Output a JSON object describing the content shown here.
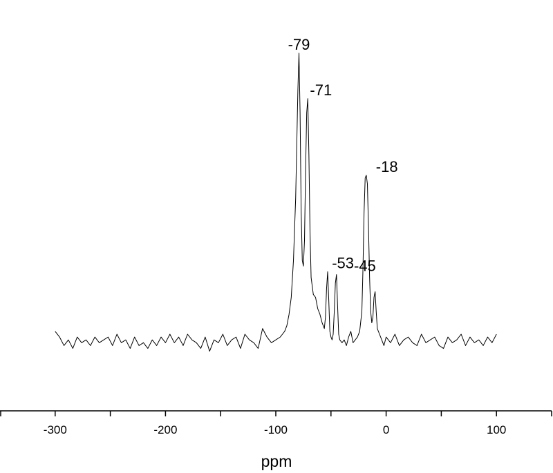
{
  "chart_data": {
    "type": "line",
    "x_label": "ppm",
    "xlim": [
      -350,
      150
    ],
    "xticks": [
      -300,
      -200,
      -100,
      0,
      100
    ],
    "xminorticks": [
      -350,
      -250,
      -150,
      -50,
      50,
      150
    ],
    "ylim": [
      -25,
      110
    ],
    "color": "#000000",
    "x": [
      -300,
      -296,
      -292,
      -288,
      -284,
      -280,
      -276,
      -272,
      -268,
      -264,
      -260,
      -256,
      -252,
      -248,
      -244,
      -240,
      -236,
      -232,
      -228,
      -224,
      -220,
      -216,
      -212,
      -208,
      -204,
      -200,
      -196,
      -192,
      -188,
      -184,
      -180,
      -176,
      -172,
      -168,
      -164,
      -160,
      -156,
      -152,
      -148,
      -144,
      -140,
      -136,
      -132,
      -128,
      -124,
      -120,
      -116,
      -112,
      -108,
      -104,
      -100,
      -96,
      -94,
      -92,
      -90,
      -88,
      -86,
      -84,
      -82,
      -80,
      -79,
      -78,
      -77,
      -76,
      -75,
      -74,
      -73,
      -72,
      -71,
      -70,
      -69,
      -68,
      -66,
      -64,
      -62,
      -60,
      -58,
      -56,
      -55,
      -54,
      -53,
      -52,
      -51,
      -50,
      -49,
      -48,
      -47,
      -46,
      -45,
      -44,
      -43,
      -42,
      -40,
      -38,
      -36,
      -34,
      -32,
      -30,
      -28,
      -26,
      -24,
      -22,
      -21,
      -20,
      -19,
      -18,
      -17,
      -16,
      -15,
      -14,
      -13,
      -12,
      -11,
      -10,
      -9,
      -8,
      -6,
      -4,
      -2,
      0,
      4,
      8,
      12,
      16,
      20,
      24,
      28,
      32,
      36,
      40,
      44,
      48,
      52,
      56,
      60,
      64,
      68,
      72,
      76,
      80,
      84,
      88,
      92,
      96,
      100
    ],
    "values": [
      3,
      1,
      -2,
      0,
      -3,
      1,
      -1,
      0,
      -2,
      1,
      -1,
      0,
      1,
      -2,
      2,
      -1,
      0,
      -3,
      1,
      -2,
      -1,
      -3,
      0,
      -2,
      1,
      -1,
      2,
      -1,
      1,
      -2,
      2,
      0,
      -1,
      -3,
      1,
      -4,
      0,
      -1,
      2,
      -2,
      0,
      1,
      -3,
      2,
      0,
      -1,
      -3,
      4,
      1,
      -1,
      0,
      1,
      2,
      3,
      5,
      9,
      15,
      28,
      50,
      88,
      101,
      80,
      45,
      28,
      26,
      35,
      60,
      80,
      85,
      65,
      38,
      22,
      16,
      15,
      11,
      9,
      6,
      4,
      8,
      18,
      24,
      14,
      3,
      1,
      0,
      2,
      10,
      20,
      23,
      12,
      2,
      0,
      -1,
      0,
      -2,
      1,
      3,
      -1,
      0,
      1,
      3,
      10,
      25,
      45,
      57,
      58,
      55,
      40,
      22,
      10,
      6,
      8,
      15,
      17,
      10,
      4,
      2,
      0,
      -2,
      1,
      -1,
      2,
      -2,
      0,
      1,
      -1,
      -2,
      2,
      -1,
      0,
      1,
      -2,
      -3,
      1,
      -1,
      0,
      2,
      -2,
      1,
      -1,
      0,
      -2,
      1,
      -1,
      2
    ],
    "annotations": [
      {
        "label": "-79",
        "x": -79,
        "y": 101
      },
      {
        "label": "-71",
        "x": -71,
        "y": 85
      },
      {
        "label": "-53",
        "x": -53,
        "y": 24
      },
      {
        "label": "-45",
        "x": -45,
        "y": 23
      },
      {
        "label": "-18",
        "x": -18,
        "y": 58
      }
    ]
  }
}
